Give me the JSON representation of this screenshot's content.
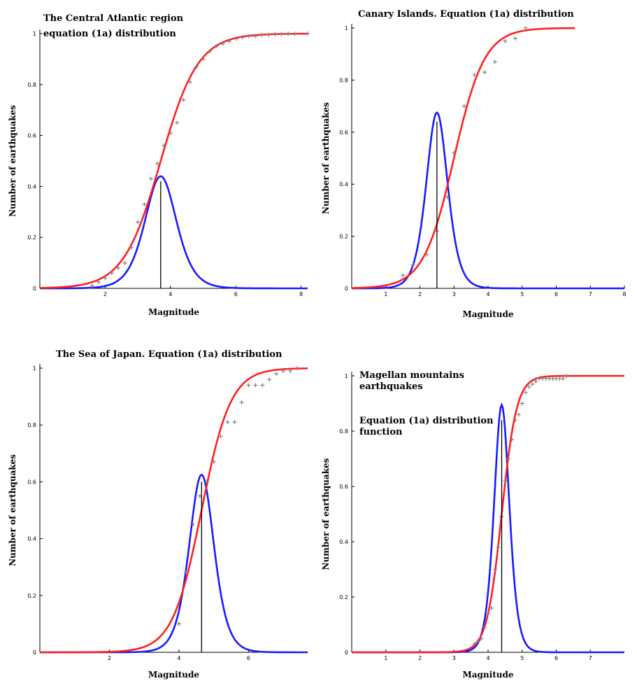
{
  "chart_data": [
    {
      "type": "line",
      "title_lines": [
        "The Central Atlantic region",
        "equation (1a) distribution"
      ],
      "xlabel": "Magnitude",
      "ylabel": "Number of earthquakes",
      "xlim": [
        0,
        8.2
      ],
      "ylim": [
        0,
        1.0
      ],
      "xticks": [
        2,
        4,
        6,
        8
      ],
      "yticks": [
        0,
        0.2,
        0.4,
        0.6,
        0.8,
        1
      ],
      "grid": false,
      "series": [
        {
          "kind": "density",
          "color": "#1a1aff",
          "mode": 3.7,
          "peak": 0.44,
          "width": 0.65
        },
        {
          "kind": "cdf",
          "color": "#ff2020",
          "center": 3.7,
          "scale": 0.57
        },
        {
          "kind": "points",
          "color": "#808080",
          "x": [
            1.6,
            1.8,
            2.0,
            2.2,
            2.4,
            2.6,
            2.8,
            3.0,
            3.2,
            3.4,
            3.6,
            3.8,
            4.0,
            4.2,
            4.4,
            4.6,
            4.8,
            5.0,
            5.2,
            5.4,
            5.6,
            5.8,
            6.0,
            6.2,
            6.4,
            6.6,
            6.8,
            7.0,
            7.2,
            7.4,
            7.6,
            7.8,
            8.2
          ],
          "y": [
            0.01,
            0.025,
            0.04,
            0.06,
            0.08,
            0.1,
            0.16,
            0.26,
            0.33,
            0.43,
            0.49,
            0.56,
            0.61,
            0.65,
            0.74,
            0.81,
            0.87,
            0.9,
            0.93,
            0.95,
            0.96,
            0.97,
            0.98,
            0.985,
            0.99,
            0.99,
            0.995,
            0.995,
            0.998,
            0.998,
            1.0,
            1.0,
            1.0
          ]
        },
        {
          "kind": "vline",
          "color": "#000000",
          "x": 3.7,
          "y": 0.42
        }
      ]
    },
    {
      "type": "line",
      "title_lines": [
        "Canary Islands. Equation (1a) distribution"
      ],
      "xlabel": "Magnitude",
      "ylabel": "Number of earthquakes",
      "xlim": [
        0,
        8
      ],
      "ylim": [
        0,
        1.0
      ],
      "xticks": [
        1,
        2,
        3,
        4,
        5,
        6,
        7,
        8
      ],
      "yticks": [
        0,
        0.2,
        0.4,
        0.6,
        0.8,
        1
      ],
      "grid": false,
      "series": [
        {
          "kind": "density",
          "color": "#1a1aff",
          "mode": 2.5,
          "peak": 0.675,
          "width": 0.42
        },
        {
          "kind": "cdf",
          "color": "#ff2020",
          "center": 3.0,
          "scale": 0.45
        },
        {
          "kind": "points",
          "color": "#808080",
          "x": [
            1.5,
            1.8,
            2.2,
            2.5,
            2.8,
            3.0,
            3.3,
            3.6,
            3.9,
            4.2,
            4.5,
            4.8,
            5.1
          ],
          "y": [
            0.05,
            0.09,
            0.13,
            0.22,
            0.35,
            0.52,
            0.7,
            0.82,
            0.83,
            0.87,
            0.95,
            0.96,
            1.0
          ]
        },
        {
          "kind": "vline",
          "color": "#000000",
          "x": 2.5,
          "y": 0.64
        }
      ]
    },
    {
      "type": "line",
      "title_lines": [
        "The Sea of Japan. Equation (1a) distribution"
      ],
      "xlabel": "Magnitude",
      "ylabel": "Number of earthquakes",
      "xlim": [
        0,
        7.7
      ],
      "ylim": [
        0,
        1.0
      ],
      "xticks": [
        2,
        4,
        6
      ],
      "yticks": [
        0,
        0.2,
        0.4,
        0.6,
        0.8,
        1
      ],
      "grid": false,
      "series": [
        {
          "kind": "density",
          "color": "#1a1aff",
          "mode": 4.65,
          "peak": 0.625,
          "width": 0.48
        },
        {
          "kind": "cdf",
          "color": "#ff2020",
          "center": 4.65,
          "scale": 0.42
        },
        {
          "kind": "points",
          "color": "#808080",
          "x": [
            4.0,
            4.2,
            4.4,
            4.6,
            4.8,
            5.0,
            5.2,
            5.4,
            5.6,
            5.8,
            6.0,
            6.2,
            6.4,
            6.6,
            6.8,
            7.0,
            7.2,
            7.4
          ],
          "y": [
            0.1,
            0.28,
            0.45,
            0.55,
            0.6,
            0.67,
            0.76,
            0.81,
            0.81,
            0.88,
            0.94,
            0.94,
            0.94,
            0.96,
            0.98,
            0.99,
            0.99,
            1.0
          ]
        },
        {
          "kind": "vline",
          "color": "#000000",
          "x": 4.65,
          "y": 0.6
        }
      ]
    },
    {
      "type": "line",
      "title_lines": [],
      "annotations": [
        [
          "Magellan mountains",
          "earthquakes"
        ],
        [
          "Equation (1a) distribution",
          "function"
        ]
      ],
      "xlabel": "Magnitude",
      "ylabel": "Number of earthquakes",
      "xlim": [
        0,
        8
      ],
      "ylim": [
        0,
        1.0
      ],
      "xticks": [
        1,
        2,
        3,
        4,
        5,
        6,
        7
      ],
      "yticks": [
        0,
        0.2,
        0.4,
        0.6,
        0.8,
        1
      ],
      "grid": false,
      "series": [
        {
          "kind": "density",
          "color": "#1a1aff",
          "mode": 4.4,
          "peak": 0.895,
          "width": 0.3
        },
        {
          "kind": "cdf",
          "color": "#ff2020",
          "center": 4.4,
          "scale": 0.22
        },
        {
          "kind": "points",
          "color": "#808080",
          "x": [
            3.6,
            3.7,
            3.8,
            3.9,
            4.0,
            4.1,
            4.2,
            4.3,
            4.4,
            4.5,
            4.6,
            4.7,
            4.8,
            4.9,
            5.0,
            5.1,
            5.2,
            5.3,
            5.4,
            5.5,
            5.6,
            5.7,
            5.8,
            5.9,
            6.0,
            6.1,
            6.2,
            6.3
          ],
          "y": [
            0.03,
            0.04,
            0.05,
            0.09,
            0.14,
            0.16,
            0.3,
            0.38,
            0.49,
            0.62,
            0.7,
            0.77,
            0.84,
            0.86,
            0.9,
            0.94,
            0.96,
            0.97,
            0.98,
            0.99,
            0.99,
            0.99,
            0.99,
            0.99,
            0.99,
            0.99,
            0.99,
            1.0
          ]
        },
        {
          "kind": "vline",
          "color": "#000000",
          "x": 4.4,
          "y": 0.84
        }
      ]
    }
  ]
}
